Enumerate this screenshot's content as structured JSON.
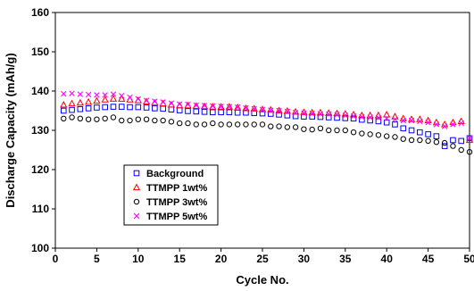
{
  "chart_data": {
    "type": "scatter",
    "xlabel": "Cycle No.",
    "ylabel": "Discharge Capacity (mAh/g)",
    "xlim": [
      0,
      50
    ],
    "ylim": [
      100,
      160
    ],
    "xticks": [
      0,
      5,
      10,
      15,
      20,
      25,
      30,
      35,
      40,
      45,
      50
    ],
    "yticks": [
      100,
      110,
      120,
      130,
      140,
      150,
      160
    ],
    "grid": false,
    "legend_position": "lower-left",
    "x": [
      1,
      2,
      3,
      4,
      5,
      6,
      7,
      8,
      9,
      10,
      11,
      12,
      13,
      14,
      15,
      16,
      17,
      18,
      19,
      20,
      21,
      22,
      23,
      24,
      25,
      26,
      27,
      28,
      29,
      30,
      31,
      32,
      33,
      34,
      35,
      36,
      37,
      38,
      39,
      40,
      41,
      42,
      43,
      44,
      45,
      46,
      47,
      48,
      49,
      50
    ],
    "series": [
      {
        "name": "Background",
        "marker": "square",
        "color": "#0000ff",
        "values": [
          135.0,
          135.2,
          135.4,
          135.6,
          135.8,
          135.9,
          136.0,
          136.0,
          135.9,
          135.9,
          135.8,
          135.6,
          135.5,
          135.3,
          135.1,
          134.9,
          134.8,
          134.7,
          134.6,
          134.6,
          134.6,
          134.5,
          134.5,
          134.4,
          134.3,
          134.2,
          134.0,
          133.8,
          133.6,
          133.5,
          133.5,
          133.4,
          133.3,
          133.2,
          133.1,
          133.0,
          132.7,
          132.5,
          132.3,
          132.0,
          131.5,
          130.5,
          130.0,
          129.5,
          129.0,
          128.5,
          126.0,
          127.5,
          127.3,
          128.0
        ]
      },
      {
        "name": "TTMPP 1wt%",
        "marker": "triangle",
        "color": "#ff0000",
        "values": [
          136.5,
          136.8,
          137.0,
          137.2,
          137.5,
          137.8,
          138.0,
          138.0,
          137.8,
          137.6,
          137.3,
          137.0,
          136.8,
          136.5,
          136.3,
          136.3,
          136.2,
          136.1,
          136.0,
          136.0,
          136.0,
          135.8,
          135.6,
          135.5,
          135.3,
          135.2,
          135.0,
          134.9,
          134.7,
          134.6,
          134.5,
          134.5,
          134.4,
          134.3,
          134.2,
          134.0,
          133.8,
          133.8,
          133.8,
          134.0,
          133.5,
          133.0,
          132.8,
          132.8,
          132.5,
          132.0,
          131.5,
          132.0,
          132.3,
          127.5
        ]
      },
      {
        "name": "TTMPP 3wt%",
        "marker": "circle",
        "color": "#000000",
        "values": [
          133.0,
          133.3,
          133.0,
          132.8,
          132.8,
          133.0,
          133.3,
          132.5,
          132.5,
          132.8,
          132.8,
          132.5,
          132.5,
          132.2,
          131.8,
          131.8,
          131.5,
          131.5,
          131.8,
          131.5,
          131.5,
          131.5,
          131.5,
          131.5,
          131.5,
          131.0,
          131.0,
          130.8,
          130.8,
          130.3,
          130.2,
          130.5,
          130.0,
          130.0,
          130.0,
          129.5,
          129.2,
          129.0,
          128.8,
          128.5,
          128.3,
          127.8,
          127.5,
          127.5,
          127.3,
          127.0,
          126.8,
          126.0,
          125.0,
          124.5
        ]
      },
      {
        "name": "TTMPP 5wt%",
        "marker": "x",
        "color": "#ff00ff",
        "values": [
          139.3,
          139.4,
          139.2,
          139.1,
          139.0,
          139.0,
          139.2,
          138.8,
          138.4,
          138.0,
          137.6,
          137.4,
          137.2,
          136.9,
          136.7,
          136.6,
          136.4,
          136.3,
          136.2,
          136.1,
          136.0,
          135.9,
          135.7,
          135.5,
          135.3,
          135.1,
          135.0,
          134.8,
          134.5,
          134.4,
          134.3,
          134.2,
          134.1,
          134.0,
          133.8,
          133.6,
          133.4,
          133.3,
          133.2,
          133.0,
          132.8,
          132.5,
          132.5,
          132.3,
          132.0,
          131.5,
          131.0,
          131.5,
          131.8,
          128.0
        ]
      }
    ]
  }
}
